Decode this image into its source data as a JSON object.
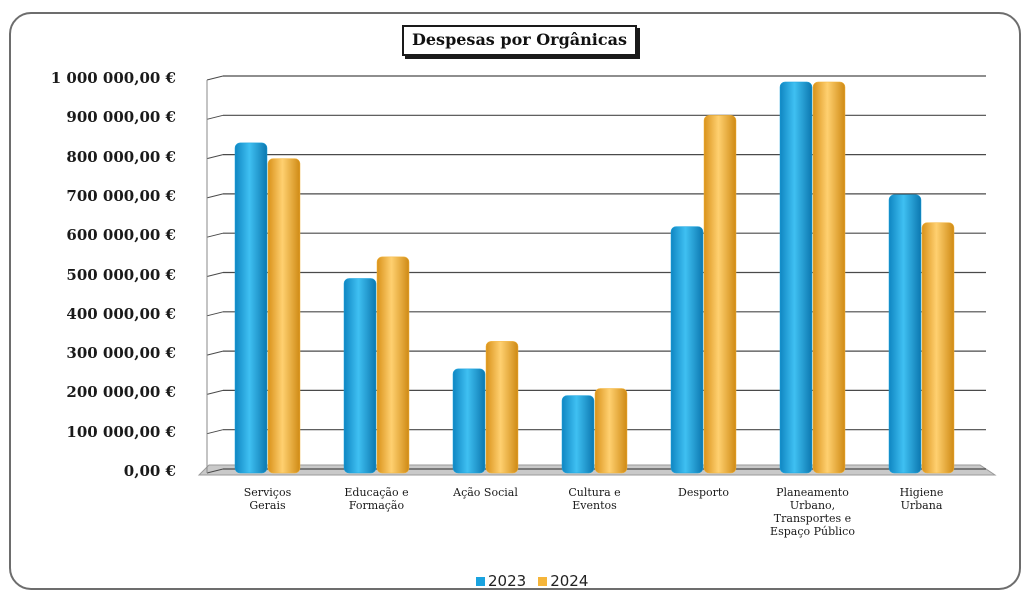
{
  "colors": {
    "series_2023": "#1aa3df",
    "series_2024": "#f5b53a",
    "grid": "#4a4a4a",
    "floor": "#c9c9c9"
  },
  "chart_data": {
    "type": "bar",
    "title": "Despesas por Orgânicas",
    "xlabel": "",
    "ylabel": "",
    "ylim": [
      0,
      1000000
    ],
    "yticks": [
      "0,00 €",
      "100 000,00 €",
      "200 000,00 €",
      "300 000,00 €",
      "400 000,00 €",
      "500 000,00 €",
      "600 000,00 €",
      "700 000,00 €",
      "800 000,00 €",
      "900 000,00 €",
      "1 000 000,00 €"
    ],
    "categories": [
      "Serviços\nGerais",
      "Educação e\nFormação",
      "Ação Social",
      "Cultura e\nEventos",
      "Desporto",
      "Planeamento\nUrbano,\nTransportes e\nEspaço Público",
      "Higiene\nUrbana"
    ],
    "series": [
      {
        "name": "2023",
        "values": [
          840000,
          495000,
          265000,
          197000,
          627000,
          995000,
          708000
        ]
      },
      {
        "name": "2024",
        "values": [
          800000,
          550000,
          335000,
          215000,
          910000,
          995000,
          637000
        ]
      }
    ],
    "grid": true,
    "legend": "bottom"
  }
}
